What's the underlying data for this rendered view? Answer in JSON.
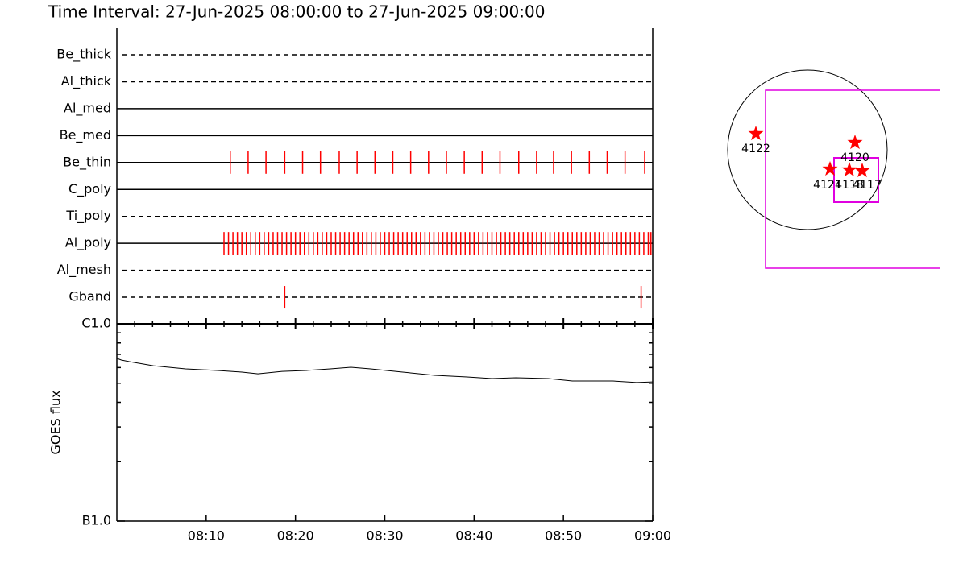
{
  "chart_data": {
    "type": "timeline",
    "title": "Time Interval: 27-Jun-2025 08:00:00 to 27-Jun-2025 09:00:00",
    "xlim": [
      0,
      60
    ],
    "xticks": [
      {
        "value": 10,
        "label": "08:10"
      },
      {
        "value": 20,
        "label": "08:20"
      },
      {
        "value": 30,
        "label": "08:30"
      },
      {
        "value": 40,
        "label": "08:40"
      },
      {
        "value": 50,
        "label": "08:50"
      },
      {
        "value": 60,
        "label": "09:00"
      }
    ],
    "xminorticks": [
      2,
      4,
      6,
      8,
      12,
      14,
      16,
      18,
      22,
      24,
      26,
      28,
      32,
      34,
      36,
      38,
      42,
      44,
      46,
      48,
      52,
      54,
      56,
      58
    ],
    "mark_color": "#ff0000",
    "channels": [
      {
        "name": "Be_thick",
        "style": "dashed",
        "times": []
      },
      {
        "name": "Al_thick",
        "style": "dashed",
        "times": []
      },
      {
        "name": "Al_med",
        "style": "solid",
        "times": []
      },
      {
        "name": "Be_med",
        "style": "solid",
        "times": []
      },
      {
        "name": "Be_thin",
        "style": "solid",
        "times": [
          12.7,
          14.7,
          16.7,
          18.8,
          20.8,
          22.8,
          24.9,
          26.9,
          28.9,
          30.9,
          32.9,
          34.9,
          36.9,
          38.9,
          40.9,
          42.9,
          45.0,
          47.0,
          48.9,
          50.9,
          52.9,
          54.9,
          56.9,
          59.1
        ]
      },
      {
        "name": "C_poly",
        "style": "solid",
        "times": []
      },
      {
        "name": "Ti_poly",
        "style": "dashed",
        "times": []
      },
      {
        "name": "Al_poly",
        "style": "solid",
        "times": [
          12.0,
          12.5,
          13.0,
          13.5,
          14.0,
          14.5,
          15.0,
          15.5,
          16.0,
          16.5,
          17.0,
          17.5,
          18.0,
          18.5,
          19.0,
          19.5,
          20.0,
          20.5,
          21.0,
          21.5,
          22.0,
          22.5,
          23.0,
          23.5,
          24.0,
          24.5,
          25.0,
          25.5,
          26.0,
          26.5,
          27.0,
          27.5,
          28.0,
          28.5,
          29.0,
          29.5,
          30.0,
          30.5,
          31.0,
          31.5,
          32.0,
          32.5,
          33.0,
          33.5,
          34.0,
          34.5,
          35.0,
          35.5,
          36.0,
          36.5,
          37.0,
          37.5,
          38.0,
          38.5,
          39.0,
          39.5,
          40.0,
          40.5,
          41.0,
          41.5,
          42.0,
          42.5,
          43.0,
          43.5,
          44.0,
          44.5,
          45.0,
          45.5,
          46.0,
          46.5,
          47.0,
          47.5,
          48.0,
          48.5,
          49.0,
          49.5,
          50.0,
          50.5,
          51.0,
          51.5,
          52.0,
          52.5,
          53.0,
          53.5,
          54.0,
          54.5,
          55.0,
          55.5,
          56.0,
          56.5,
          57.0,
          57.5,
          58.0,
          58.5,
          59.0,
          59.5,
          59.8
        ]
      },
      {
        "name": "Al_mesh",
        "style": "dashed",
        "times": []
      },
      {
        "name": "Gband",
        "style": "dashed",
        "times": [
          18.8,
          58.7
        ]
      }
    ],
    "goes": {
      "ylabel": "GOES flux",
      "log": true,
      "ylim": [
        1e-07,
        1e-06
      ],
      "yticks": [
        {
          "value": 1e-06,
          "label": "C1.0"
        },
        {
          "value": 1e-07,
          "label": "B1.0"
        }
      ],
      "yminorticks": [
        2e-07,
        3e-07,
        4e-07,
        5e-07,
        6e-07,
        7e-07,
        8e-07,
        9e-07
      ],
      "x": [
        0,
        0.5,
        1.4,
        4.1,
        7.7,
        11.3,
        14.0,
        15.8,
        18.5,
        21.2,
        23.9,
        26.2,
        28.4,
        32.0,
        35.6,
        39.2,
        42.0,
        44.7,
        48.3,
        51.0,
        55.5,
        58.2,
        60
      ],
      "values": [
        6.68e-07,
        6.55e-07,
        6.43e-07,
        6.13e-07,
        5.91e-07,
        5.8e-07,
        5.69e-07,
        5.58e-07,
        5.74e-07,
        5.8e-07,
        5.91e-07,
        6.02e-07,
        5.91e-07,
        5.69e-07,
        5.48e-07,
        5.38e-07,
        5.28e-07,
        5.33e-07,
        5.28e-07,
        5.13e-07,
        5.13e-07,
        5.04e-07,
        5.08e-07
      ]
    },
    "regions": [
      "4122",
      "4120",
      "4121",
      "4118",
      "4117"
    ]
  }
}
